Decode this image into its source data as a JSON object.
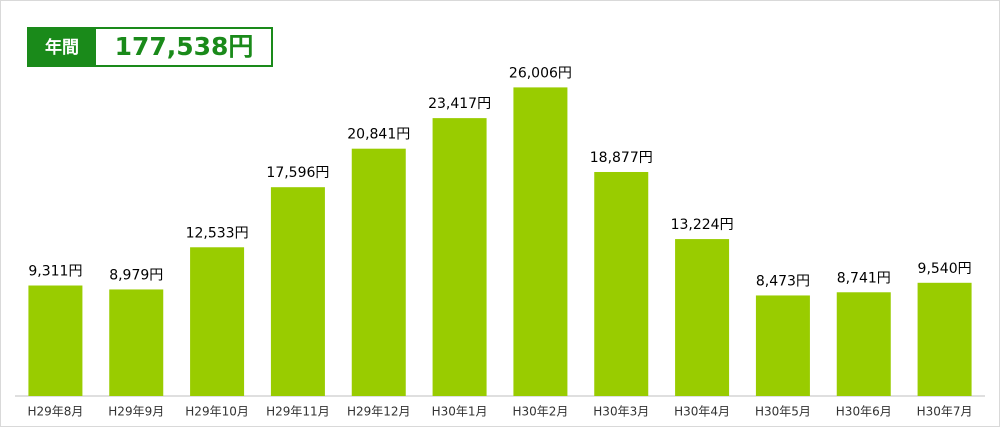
{
  "chart_data": {
    "type": "bar",
    "total_label": "年間",
    "total_text": "177,538円",
    "categories": [
      "H29年8月",
      "H29年9月",
      "H29年10月",
      "H29年11月",
      "H29年12月",
      "H30年1月",
      "H30年2月",
      "H30年3月",
      "H30年4月",
      "H30年5月",
      "H30年6月",
      "H30年7月"
    ],
    "values": [
      9311,
      8979,
      12533,
      17596,
      20841,
      23417,
      26006,
      18877,
      13224,
      8473,
      8741,
      9540
    ],
    "value_labels": [
      "9,311円",
      "8,979円",
      "12,533円",
      "17,596円",
      "20,841円",
      "23,417円",
      "26,006円",
      "18,877円",
      "13,224円",
      "8,473円",
      "8,741円",
      "9,540円"
    ],
    "color": "#99cc00",
    "ylim": [
      0,
      30000
    ]
  }
}
